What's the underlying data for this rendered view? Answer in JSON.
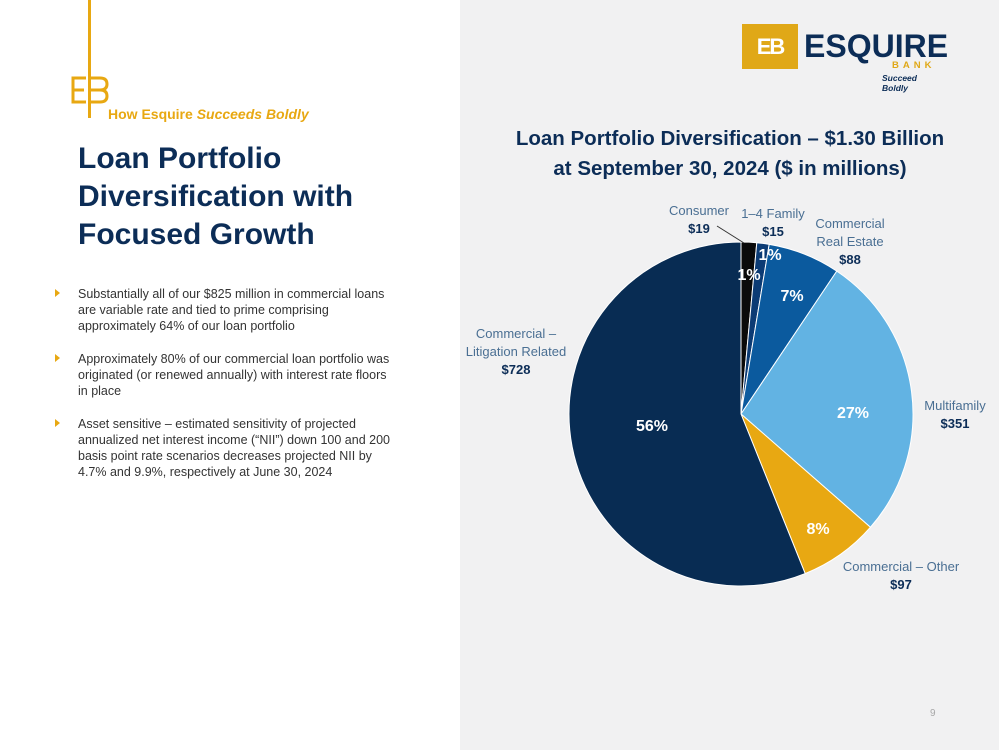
{
  "left": {
    "kicker_prefix": "How Esquire",
    "kicker_italic": "Succeeds Boldly",
    "title": "Loan Portfolio Diversification with Focused Growth",
    "bullets": [
      "Substantially all of our $825 million in commercial loans are variable rate and tied to prime comprising approximately 64% of our loan portfolio",
      "Approximately 80% of our commercial loan portfolio was originated (or renewed annually) with interest rate floors in place",
      "Asset sensitive – estimated sensitivity of projected annualized net interest income (“NII”) down 100 and 200 basis point rate scenarios decreases projected NII by 4.7% and 9.9%, respectively at June 30, 2024"
    ]
  },
  "logo": {
    "mark": "EB",
    "word": "ESQUIRE",
    "bank": "BANK",
    "tagline": "Succeed Boldly"
  },
  "page_number": "9",
  "colors": {
    "navy": "#0c2d57",
    "gold": "#e8a812",
    "light_blue": "#62b3e3",
    "mid_blue": "#0b5a9e",
    "panel_bg": "#f1f1f2"
  },
  "chart_data": {
    "type": "pie",
    "title_line1": "Loan Portfolio Diversification – $1.30 Billion",
    "title_line2": "at September 30, 2024 ($ in millions)",
    "slices": [
      {
        "label": [
          "Consumer"
        ],
        "value_label": "$19",
        "value": 19,
        "pct": "1%",
        "color": "#0a0a0a"
      },
      {
        "label": [
          "1–4 Family"
        ],
        "value_label": "$15",
        "value": 15,
        "pct": "1%",
        "color": "#0c3b74"
      },
      {
        "label": [
          "Commercial",
          "Real Estate"
        ],
        "value_label": "$88",
        "value": 88,
        "pct": "7%",
        "color": "#0b5a9e"
      },
      {
        "label": [
          "Multifamily"
        ],
        "value_label": "$351",
        "value": 351,
        "pct": "27%",
        "color": "#62b3e3"
      },
      {
        "label": [
          "Commercial – Other"
        ],
        "value_label": "$97",
        "value": 97,
        "pct": "8%",
        "color": "#e8a812"
      },
      {
        "label": [
          "Commercial –",
          "Litigation Related"
        ],
        "value_label": "$728",
        "value": 728,
        "pct": "56%",
        "color": "#082c53"
      }
    ]
  }
}
